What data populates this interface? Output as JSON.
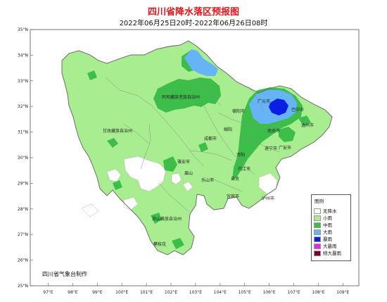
{
  "title": "四川省降水落区预报图",
  "subtitle": "2022年06月25日20时-2022年06月26日08时",
  "credit": "四川省气象台制作",
  "colors": {
    "title": "#e0161b",
    "no_rain": "#ffffff",
    "light": "#a8ee90",
    "moderate": "#3dbd4a",
    "heavy": "#66b3f5",
    "storm": "#0a1fe6",
    "heavy_storm": "#f020e8",
    "extreme_storm": "#7a0030"
  },
  "legend": {
    "title": "图例",
    "items": [
      {
        "label": "无降水",
        "color": "#ffffff"
      },
      {
        "label": "小雨",
        "color": "#a8ee90"
      },
      {
        "label": "中雨",
        "color": "#3dbd4a"
      },
      {
        "label": "大雨",
        "color": "#66b3f5"
      },
      {
        "label": "暴雨",
        "color": "#0a1fe6"
      },
      {
        "label": "大暴雨",
        "color": "#f020e8"
      },
      {
        "label": "特大暴雨",
        "color": "#7a0030"
      }
    ]
  },
  "axes": {
    "lat_labels": [
      "35°N",
      "34°N",
      "33°N",
      "32°N",
      "31°N",
      "30°N",
      "29°N",
      "28°N",
      "27°N",
      "26°N",
      "25°N"
    ],
    "lon_labels": [
      "97°E",
      "98°E",
      "99°E",
      "100°E",
      "101°E",
      "102°E",
      "103°E",
      "104°E",
      "105°E",
      "106°E",
      "107°E",
      "108°E",
      "109°E"
    ]
  },
  "places": [
    "阿坝藏族羌族自治州",
    "甘孜藏族自治州",
    "凉山彝族自治州",
    "攀枝花",
    "雅安市",
    "眉山",
    "乐山市",
    "成都市",
    "德阳市",
    "绵阳",
    "广元市",
    "巴中市",
    "达州市",
    "南充市",
    "遂宁市",
    "资阳",
    "内江市",
    "自贡",
    "宜宾市",
    "泸州市",
    "广安市"
  ]
}
